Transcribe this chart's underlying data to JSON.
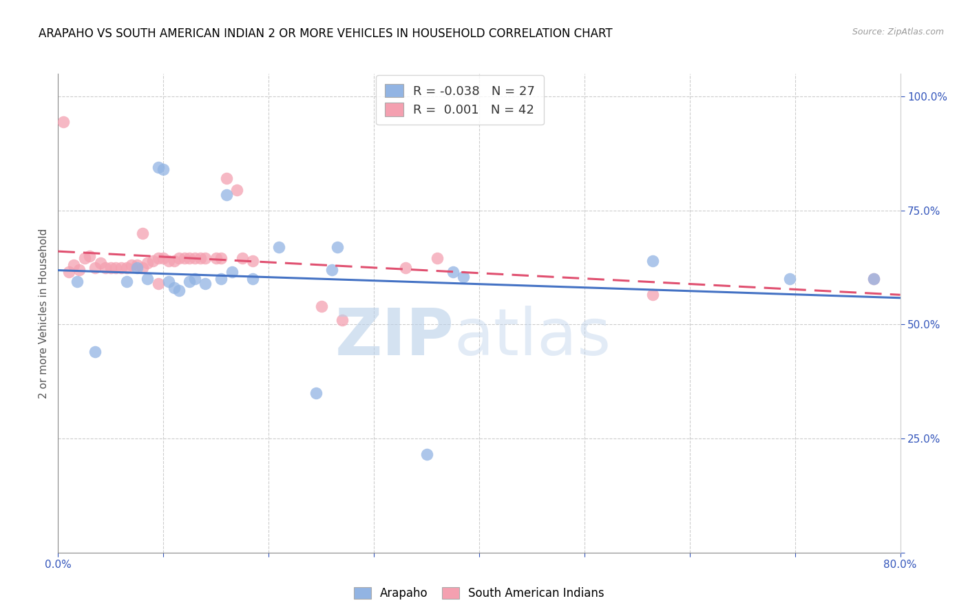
{
  "title": "ARAPAHO VS SOUTH AMERICAN INDIAN 2 OR MORE VEHICLES IN HOUSEHOLD CORRELATION CHART",
  "source": "Source: ZipAtlas.com",
  "ylabel": "2 or more Vehicles in Household",
  "xmin": 0.0,
  "xmax": 0.8,
  "ymin": 0.0,
  "ymax": 1.05,
  "legend_arapaho_R": "-0.038",
  "legend_arapaho_N": "27",
  "legend_sa_R": "0.001",
  "legend_sa_N": "42",
  "arapaho_color": "#92b4e3",
  "sa_color": "#f4a0b0",
  "trendline_arapaho_color": "#4472c4",
  "trendline_sa_color": "#e05070",
  "watermark_zip": "ZIP",
  "watermark_atlas": "atlas",
  "arapaho_x": [
    0.018,
    0.035,
    0.065,
    0.075,
    0.085,
    0.095,
    0.1,
    0.105,
    0.11,
    0.115,
    0.125,
    0.13,
    0.14,
    0.155,
    0.16,
    0.165,
    0.185,
    0.21,
    0.245,
    0.26,
    0.265,
    0.35,
    0.375,
    0.385,
    0.565,
    0.695,
    0.775
  ],
  "arapaho_y": [
    0.595,
    0.44,
    0.595,
    0.625,
    0.6,
    0.845,
    0.84,
    0.595,
    0.58,
    0.575,
    0.595,
    0.6,
    0.59,
    0.6,
    0.785,
    0.615,
    0.6,
    0.67,
    0.35,
    0.62,
    0.67,
    0.215,
    0.615,
    0.605,
    0.64,
    0.6,
    0.6
  ],
  "sa_x": [
    0.005,
    0.01,
    0.015,
    0.02,
    0.025,
    0.03,
    0.035,
    0.04,
    0.045,
    0.05,
    0.055,
    0.06,
    0.065,
    0.07,
    0.075,
    0.08,
    0.085,
    0.09,
    0.095,
    0.1,
    0.105,
    0.11,
    0.115,
    0.12,
    0.125,
    0.13,
    0.135,
    0.14,
    0.15,
    0.155,
    0.16,
    0.17,
    0.175,
    0.185,
    0.25,
    0.27,
    0.33,
    0.36,
    0.565,
    0.775,
    0.08,
    0.095
  ],
  "sa_y": [
    0.945,
    0.615,
    0.63,
    0.62,
    0.645,
    0.65,
    0.625,
    0.635,
    0.625,
    0.625,
    0.625,
    0.625,
    0.625,
    0.63,
    0.63,
    0.625,
    0.635,
    0.64,
    0.645,
    0.645,
    0.64,
    0.64,
    0.645,
    0.645,
    0.645,
    0.645,
    0.645,
    0.645,
    0.645,
    0.645,
    0.82,
    0.795,
    0.645,
    0.64,
    0.54,
    0.51,
    0.625,
    0.645,
    0.565,
    0.6,
    0.7,
    0.59
  ]
}
